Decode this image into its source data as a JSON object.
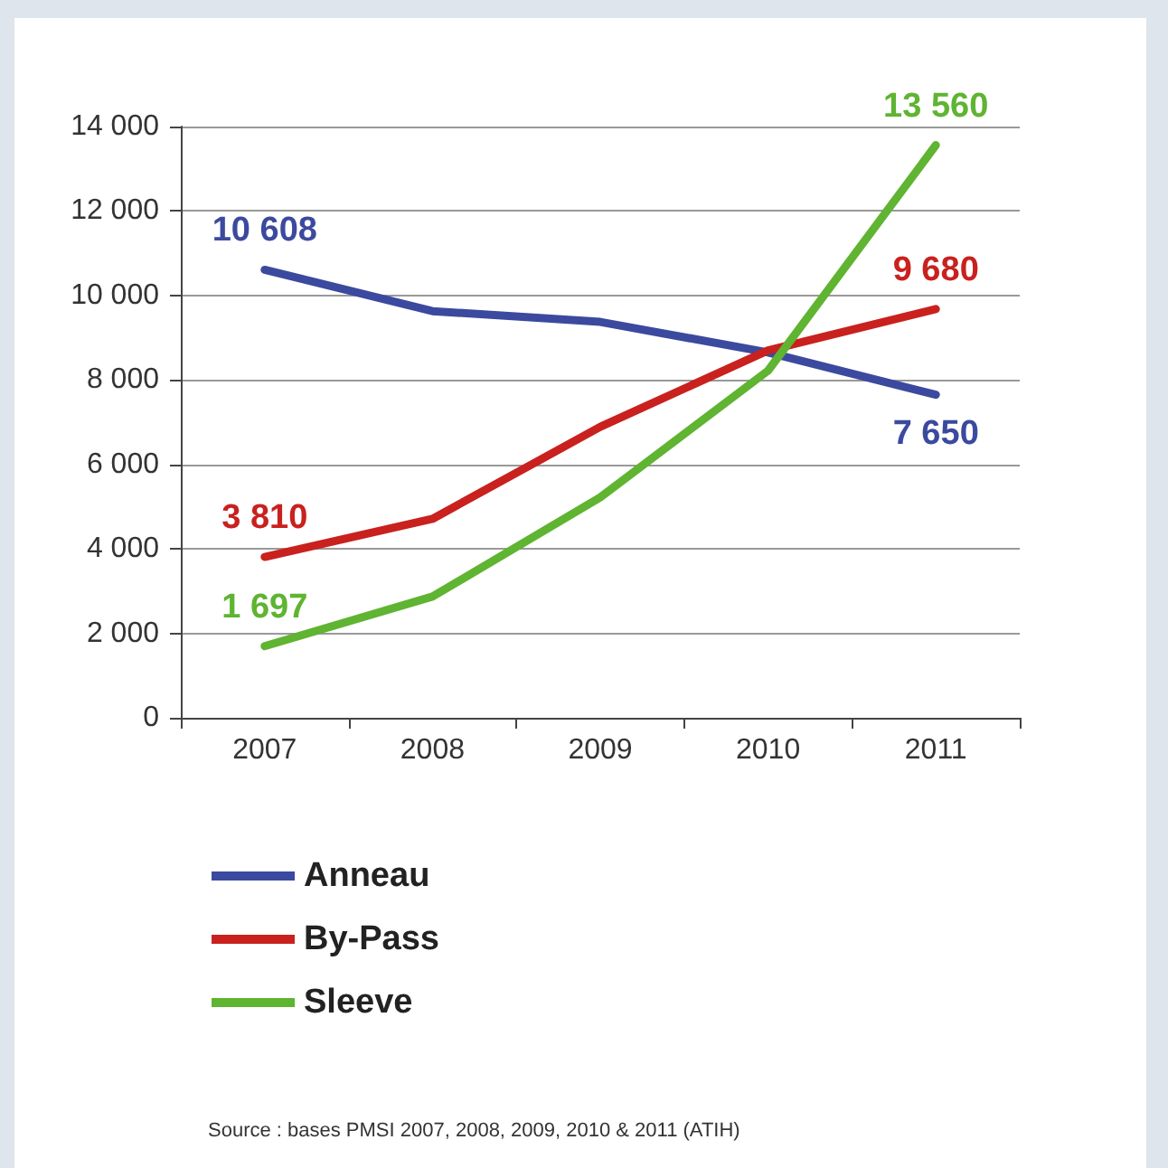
{
  "chart_data": {
    "type": "line",
    "categories": [
      "2007",
      "2008",
      "2009",
      "2010",
      "2011"
    ],
    "series": [
      {
        "name": "Anneau",
        "color": "#3b4a9e",
        "values": [
          10608,
          9630,
          9375,
          8650,
          7650
        ],
        "value_labels": [
          "10 608",
          null,
          null,
          null,
          "7 650"
        ]
      },
      {
        "name": "By-Pass",
        "color": "#c9211e",
        "values": [
          3810,
          4710,
          6890,
          8700,
          9680
        ],
        "value_labels": [
          "3 810",
          null,
          null,
          null,
          "9 680"
        ]
      },
      {
        "name": "Sleeve",
        "color": "#5fb431",
        "values": [
          1697,
          2870,
          5220,
          8220,
          13560
        ],
        "value_labels": [
          "1 697",
          null,
          null,
          null,
          "13 560"
        ]
      }
    ],
    "ylim": [
      0,
      14000
    ],
    "yticks": [
      {
        "value": 0,
        "label": "0"
      },
      {
        "value": 2000,
        "label": "2 000"
      },
      {
        "value": 4000,
        "label": "4 000"
      },
      {
        "value": 6000,
        "label": "6 000"
      },
      {
        "value": 8000,
        "label": "8 000"
      },
      {
        "value": 10000,
        "label": "10 000"
      },
      {
        "value": 12000,
        "label": "12 000"
      },
      {
        "value": 14000,
        "label": "14 000"
      }
    ],
    "grid": "y",
    "legend": "bottom",
    "marker": "none",
    "line_style": "solid",
    "annotations": [
      "Source : bases PMSI 2007, 2008, 2009, 2010 & 2011 (ATIH)"
    ]
  }
}
